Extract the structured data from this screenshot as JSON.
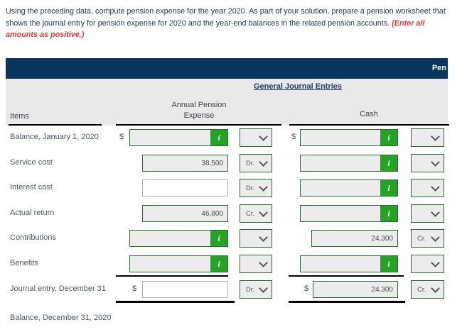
{
  "instructions": {
    "main": "Using the preceding data, compute pension expense for the year 2020. As part of your solution, prepare a pension worksheet that shows the journal entry for pension expense for 2020 and the year-end balances in the related pension accounts. ",
    "emphasis": "(Enter all amounts as positive.)"
  },
  "title_bar": {
    "label": "Pen"
  },
  "table": {
    "subtitle": "General Journal Entries",
    "columns": {
      "items": "Items",
      "expense_line1": "Annual Pension",
      "expense_line2": "Expense",
      "cash": "Cash"
    }
  },
  "icons": {
    "info": "i"
  },
  "colors": {
    "navy_bar": "#09355f",
    "green_button": "#23a423",
    "green_border": "#2f6a31",
    "red_emphasis": "#e03a3a"
  },
  "rows": [
    {
      "label": "Balance, January 1, 2020",
      "expense": {
        "currency": "$",
        "value": "",
        "dd": ""
      },
      "cash": {
        "currency": "$",
        "value": "",
        "dd": ""
      }
    },
    {
      "label": "Service cost",
      "expense": {
        "value": "38,500",
        "dd": "Dr."
      },
      "cash": {
        "value": "",
        "dd": ""
      }
    },
    {
      "label": "Interest cost",
      "expense": {
        "value": "",
        "dd": "Dr."
      },
      "cash": {
        "value": "",
        "dd": ""
      }
    },
    {
      "label": "Actual return",
      "expense": {
        "value": "46,800",
        "dd": "Cr."
      },
      "cash": {
        "value": "",
        "dd": ""
      }
    },
    {
      "label": "Contributions",
      "expense": {
        "value": "",
        "dd": ""
      },
      "cash": {
        "value": "24,300",
        "dd": "Cr."
      }
    },
    {
      "label": "Benefits",
      "expense": {
        "value": "",
        "dd": ""
      },
      "cash": {
        "value": "",
        "dd": ""
      }
    },
    {
      "label": "Journal entry, December 31",
      "expense": {
        "currency": "$",
        "value": "",
        "dd": "Dr."
      },
      "cash": {
        "currency": "$",
        "value": "24,300",
        "dd": "Cr."
      }
    },
    {
      "label": "Balance, December 31, 2020"
    }
  ]
}
